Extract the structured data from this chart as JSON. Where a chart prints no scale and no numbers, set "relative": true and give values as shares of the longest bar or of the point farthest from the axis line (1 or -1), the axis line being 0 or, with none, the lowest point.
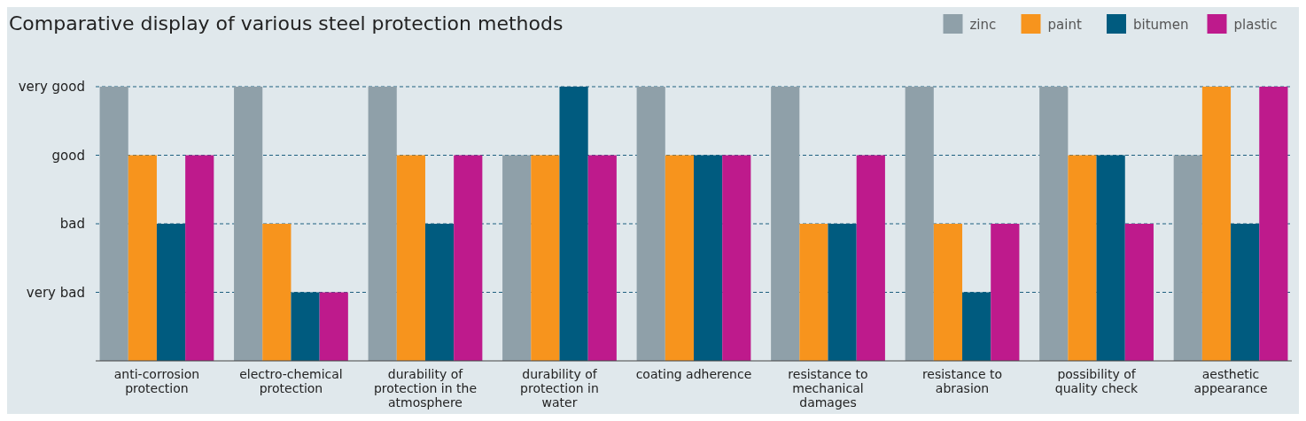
{
  "chart_data": {
    "type": "bar",
    "title": "Comparative display of various steel protection methods",
    "categories": [
      "anti-corrosion protection",
      "electro-chemical protection",
      "durability of protection in the atmosphere",
      "durability of protection in water",
      "coating adherence",
      "resistance to mechanical damages",
      "resistance to abrasion",
      "possibility of quality check",
      "aesthetic appearance"
    ],
    "series": [
      {
        "name": "zinc",
        "color": "#8fa0a9",
        "values": [
          1,
          1,
          1,
          0.75,
          1,
          1,
          1,
          1,
          0.75
        ]
      },
      {
        "name": "paint",
        "color": "#f7941d",
        "values": [
          0.75,
          0.5,
          0.75,
          0.75,
          0.75,
          0.5,
          0.5,
          0.75,
          1
        ]
      },
      {
        "name": "bitumen",
        "color": "#005b7f",
        "values": [
          0.5,
          0.25,
          0.5,
          1,
          0.75,
          0.5,
          0.25,
          0.75,
          0.5
        ]
      },
      {
        "name": "plastic",
        "color": "#be1a8c",
        "values": [
          0.75,
          0.25,
          0.75,
          0.75,
          0.75,
          0.75,
          0.5,
          0.5,
          1
        ]
      }
    ],
    "relative": true,
    "ref_lines": [
      {
        "axis": "y",
        "value": 0.25,
        "label": "very bad",
        "color": "#1f6080",
        "line_style": "dashed"
      },
      {
        "axis": "y",
        "value": 0.5,
        "label": "bad",
        "color": "#1f6080",
        "line_style": "dashed"
      },
      {
        "axis": "y",
        "value": 0.75,
        "label": "good",
        "color": "#1f6080",
        "line_style": "dashed"
      },
      {
        "axis": "y",
        "value": 1,
        "label": "very good",
        "color": "#1f6080",
        "line_style": "dashed"
      }
    ],
    "legend": "top right"
  }
}
